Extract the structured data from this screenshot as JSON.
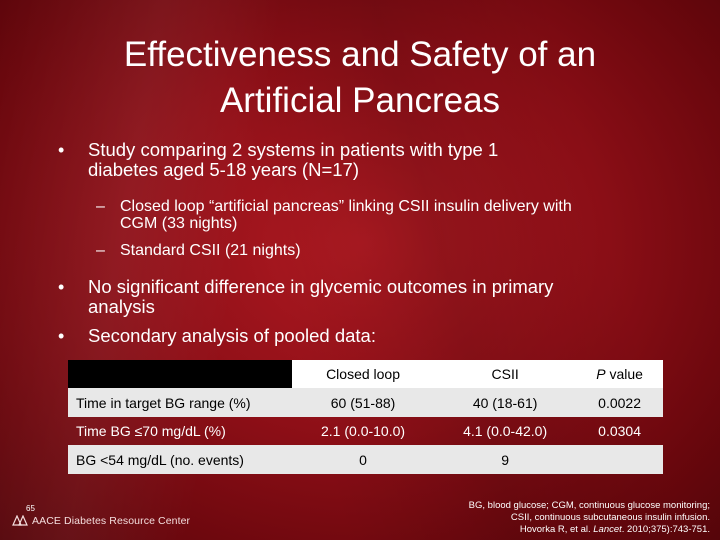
{
  "slide": {
    "title_line1": "Effectiveness and Safety of an",
    "title_line2": "Artificial Pancreas",
    "page_number": "65",
    "logo_text": "AACE Diabetes Resource Center"
  },
  "bullets": {
    "b1_line1": "Study comparing 2 systems in patients with type 1",
    "b1_line2": "diabetes aged 5-18 years (N=17)",
    "sub1_line1": "Closed loop “artificial pancreas” linking CSII insulin delivery with",
    "sub1_line2": "CGM (33 nights)",
    "sub2": "Standard CSII (21 nights)",
    "b2_line1": "No significant difference in glycemic outcomes in primary",
    "b2_line2": "analysis",
    "b3": "Secondary analysis of pooled data:"
  },
  "table": {
    "headers": [
      "",
      "Closed loop",
      "CSII",
      "P value"
    ],
    "rows": [
      [
        "Time in target BG range (%)",
        "60 (51-88)",
        "40 (18-61)",
        "0.0022"
      ],
      [
        "Time BG ≤70 mg/dL (%)",
        "2.1 (0.0-10.0)",
        "4.1 (0.0-42.0)",
        "0.0304"
      ],
      [
        "BG <54 mg/dL (no. events)",
        "0",
        "9",
        ""
      ]
    ]
  },
  "footnote": {
    "line1": "BG, blood glucose; CGM, continuous glucose monitoring;",
    "line2": "CSII, continuous subcutaneous insulin infusion.",
    "line3_a": "Hovorka R, et al. ",
    "line3_journal": "Lancet",
    "line3_b": ". 2010;375):743-751."
  },
  "colors": {
    "background": "#8e0f17",
    "text": "#ffffff",
    "header_bg": "#ffffff",
    "shaded_row": "#e8e8e8"
  }
}
